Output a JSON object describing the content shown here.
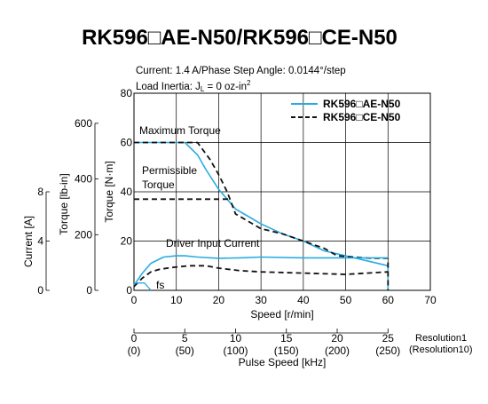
{
  "title": "RK596□AE-N50/RK596□CE-N50",
  "conditions": {
    "line1": "Current: 1.4 A/Phase   Step Angle: 0.0144°/step",
    "line2_prefix": "Load Inertia: J",
    "line2_sub": "L",
    "line2_suffix": " = 0 oz-in",
    "line2_sup": "2"
  },
  "colors": {
    "ae_series": "#29abe2",
    "ce_series": "#111111",
    "grid": "#000000",
    "axis": "#000000"
  },
  "chart_data": {
    "type": "line",
    "xlabel": "Speed [r/min]",
    "xlim": [
      0,
      70
    ],
    "xticks": [
      "0",
      "10",
      "20",
      "30",
      "40",
      "50",
      "60",
      "70"
    ],
    "ylabel": "Torque [N·m]",
    "ylim": [
      0,
      80
    ],
    "yticks": [
      "0",
      "20",
      "40",
      "60",
      "80"
    ],
    "y2label": "Torque [lb-in]",
    "y2ticks": [
      {
        "nm": 0,
        "label": "0"
      },
      {
        "nm": 22.6,
        "label": "200"
      },
      {
        "nm": 45.2,
        "label": "400"
      },
      {
        "nm": 67.8,
        "label": "600"
      }
    ],
    "y3label": "Current [A]",
    "y3ticks": [
      {
        "nm": 0,
        "label": "0"
      },
      {
        "nm": 20,
        "label": "4"
      },
      {
        "nm": 40,
        "label": "8"
      }
    ],
    "grid": true,
    "legend_position": "top-right",
    "series": [
      {
        "name": "RK596□AE-N50",
        "style": "solid",
        "x": [
          0,
          10,
          12,
          15,
          17,
          20,
          22,
          24,
          26,
          30,
          35,
          40,
          45,
          50,
          55,
          60,
          60
        ],
        "y": [
          60,
          60,
          60,
          55,
          49,
          41,
          37,
          33,
          31,
          27,
          23,
          20,
          16,
          14,
          12,
          10,
          0
        ]
      },
      {
        "name": "RK596□CE-N50",
        "style": "dashed",
        "x": [
          0,
          12,
          15,
          18,
          20,
          22,
          24,
          26,
          30,
          35,
          40,
          45,
          48,
          52,
          56,
          60,
          60
        ],
        "y": [
          60,
          60,
          60,
          53,
          47,
          40,
          31,
          29,
          25,
          23,
          20,
          17,
          14,
          13.5,
          13,
          13,
          0
        ]
      },
      {
        "name": "Permissible Torque",
        "style": "dashed",
        "x": [
          0,
          23
        ],
        "y": [
          37,
          37
        ]
      },
      {
        "name": "Driver Input Current (AE)",
        "style": "solid",
        "x": [
          0,
          2,
          4,
          7,
          10,
          12,
          15,
          20,
          25,
          30,
          40,
          50,
          60
        ],
        "y": [
          2,
          7,
          11,
          13.5,
          14,
          14,
          13.5,
          13,
          13.2,
          13.5,
          13.2,
          13.2,
          13.2
        ]
      },
      {
        "name": "Driver Input Current (CE)",
        "style": "dashed",
        "x": [
          0,
          2,
          4,
          6,
          9,
          13,
          17,
          20,
          25,
          30,
          40,
          50,
          60
        ],
        "y": [
          1.5,
          5,
          7.5,
          8.5,
          9.3,
          10,
          10,
          9,
          8,
          7.5,
          7,
          6.5,
          7.5
        ]
      },
      {
        "name": "fs",
        "style": "solid",
        "x": [
          0,
          2.5,
          4
        ],
        "y": [
          3,
          3,
          0
        ]
      }
    ],
    "annotations": [
      {
        "id": "max-torque",
        "text": "Maximum Torque"
      },
      {
        "id": "permissible-1",
        "text": "Permissible"
      },
      {
        "id": "permissible-2",
        "text": "Torque"
      },
      {
        "id": "driver-current",
        "text": "Driver Input Current"
      },
      {
        "id": "fs",
        "text": "fs"
      }
    ],
    "pulse_axis": {
      "label": "Pulse Speed [kHz]",
      "max_kHz": 25,
      "ticks_res1": [
        "0",
        "5",
        "10",
        "15",
        "20",
        "25"
      ],
      "ticks_res10": [
        "(0)",
        "(50)",
        "(100)",
        "(150)",
        "(200)",
        "(250)"
      ],
      "res1_label": "Resolution1",
      "res10_label": "(Resolution10)"
    }
  }
}
